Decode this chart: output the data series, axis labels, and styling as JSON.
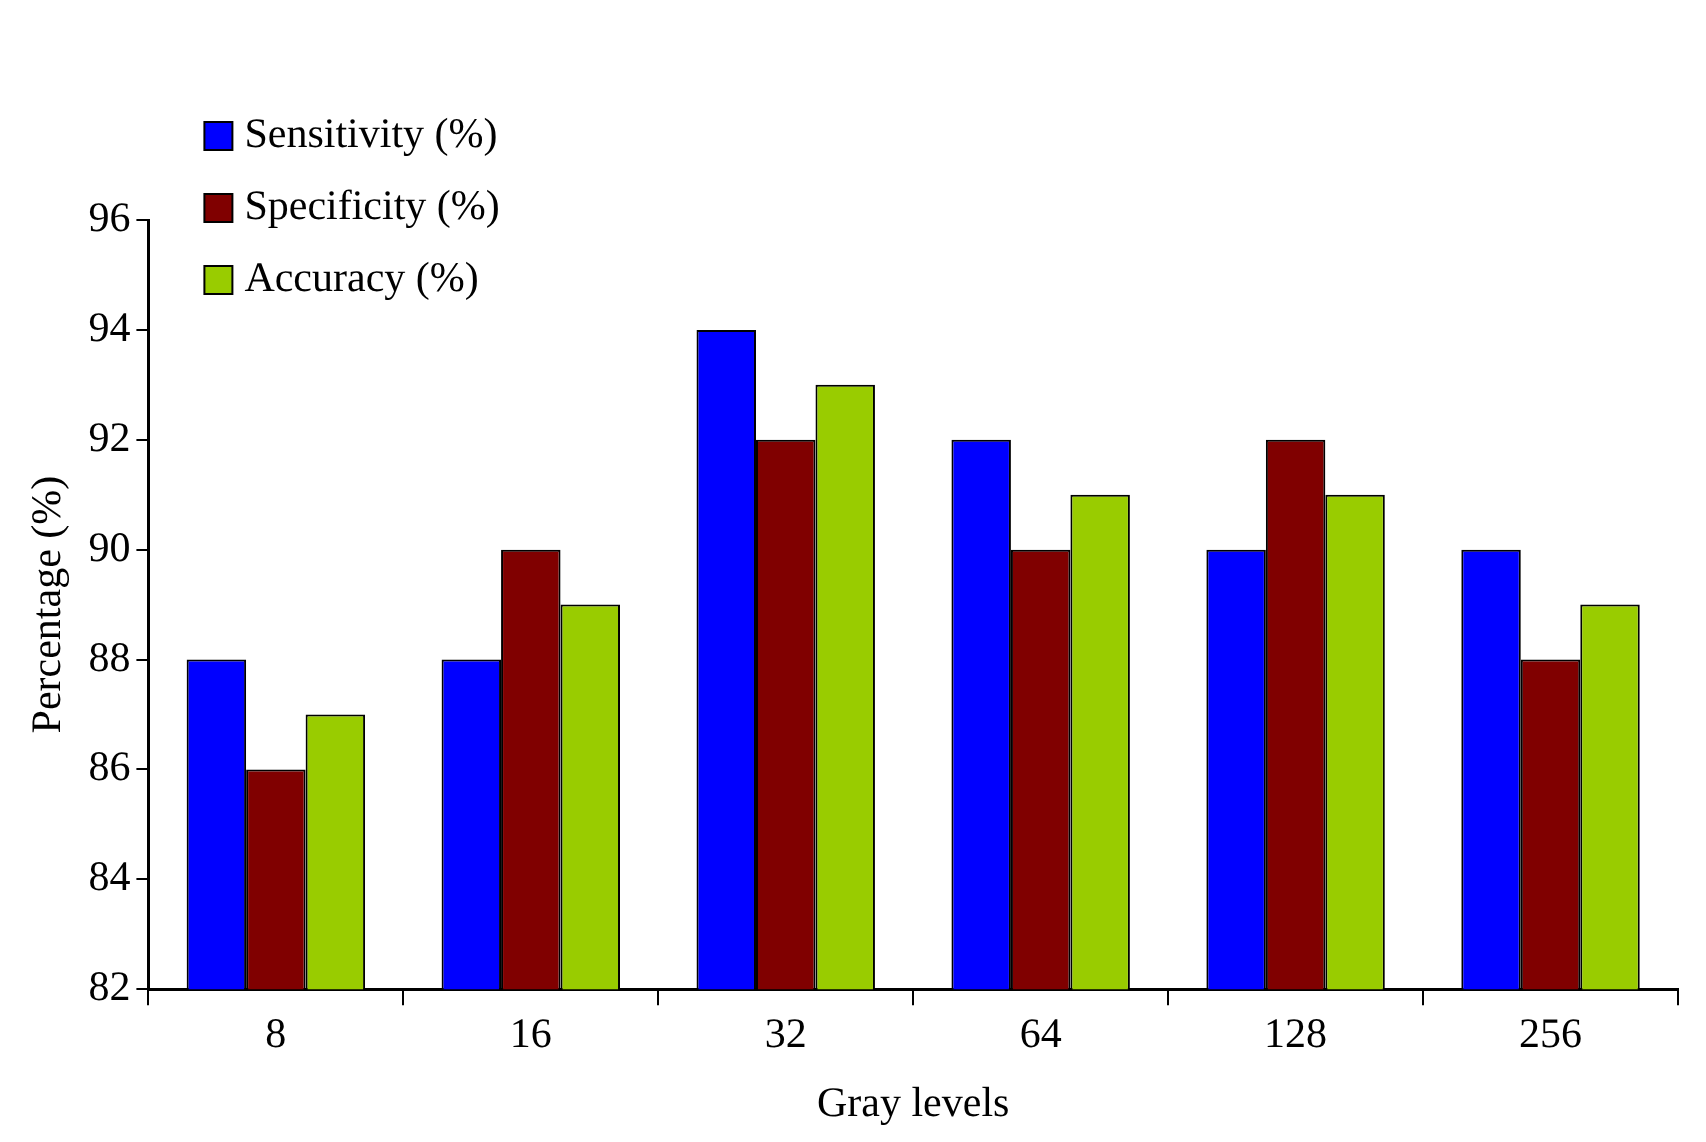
{
  "chart_data": {
    "type": "bar",
    "xlabel": "Gray levels",
    "ylabel": "Percentage (%)",
    "categories": [
      "8",
      "16",
      "32",
      "64",
      "128",
      "256"
    ],
    "series": [
      {
        "name": "Sensitivity (%)",
        "color": "#0000ff",
        "values": [
          88,
          88,
          94,
          92,
          90,
          90
        ]
      },
      {
        "name": "Specificity (%)",
        "color": "#800000",
        "values": [
          86,
          90,
          92,
          90,
          92,
          88
        ]
      },
      {
        "name": "Accuracy (%)",
        "color": "#99cc00",
        "values": [
          87,
          89,
          93,
          91,
          91,
          89
        ]
      }
    ],
    "ylim": [
      82,
      96
    ],
    "yticks": [
      82,
      84,
      86,
      88,
      90,
      92,
      94,
      96
    ],
    "grid": false,
    "legend": "top left"
  }
}
